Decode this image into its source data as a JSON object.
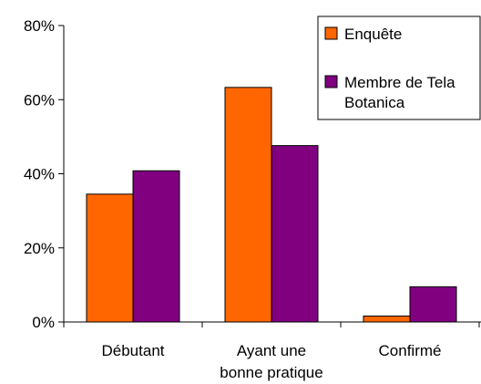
{
  "chart_data": {
    "type": "bar",
    "title": "",
    "xlabel": "",
    "ylabel": "",
    "ylim": [
      0,
      80
    ],
    "yticks": [
      "0%",
      "20%",
      "40%",
      "60%",
      "80%"
    ],
    "ytick_values": [
      0,
      20,
      40,
      60,
      80
    ],
    "grid": false,
    "legend_position": "top-right",
    "categories": [
      [
        "Débutant"
      ],
      [
        "Ayant une",
        "bonne pratique"
      ],
      [
        "Confirmé"
      ]
    ],
    "series": [
      {
        "name": "Enquête",
        "name_lines": [
          "Enquête"
        ],
        "color": "#FF6600",
        "values": [
          34.5,
          63.3,
          1.6
        ]
      },
      {
        "name": "Membre de Tela Botanica",
        "name_lines": [
          "Membre de Tela",
          "Botanica"
        ],
        "color": "#800080",
        "values": [
          40.8,
          47.6,
          9.5
        ]
      }
    ]
  }
}
